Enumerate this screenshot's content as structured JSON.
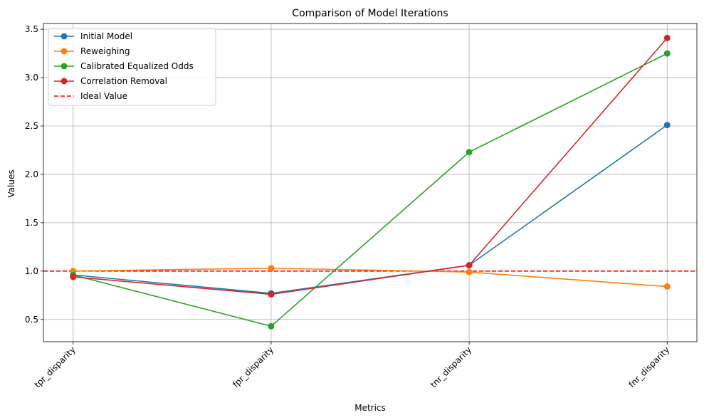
{
  "chart_data": {
    "type": "line",
    "title": "Comparison of Model Iterations",
    "xlabel": "Metrics",
    "ylabel": "Values",
    "categories": [
      "tpr_disparity",
      "fpr_disparity",
      "tnr_disparity",
      "fnr_disparity"
    ],
    "ylim": [
      0.27,
      3.56
    ],
    "yticks": [
      0.5,
      1.0,
      1.5,
      2.0,
      2.5,
      3.0,
      3.5
    ],
    "ytick_labels": [
      "0.5",
      "1.0",
      "1.5",
      "2.0",
      "2.5",
      "3.0",
      "3.5"
    ],
    "grid": true,
    "legend_position": "top-left",
    "series": [
      {
        "name": "Initial Model",
        "color": "#1f77b4",
        "values": [
          0.96,
          0.77,
          1.06,
          2.51
        ]
      },
      {
        "name": "Reweighing",
        "color": "#ff7f0e",
        "values": [
          1.0,
          1.03,
          0.99,
          0.84
        ]
      },
      {
        "name": "Calibrated Equalized Odds",
        "color": "#2ca02c",
        "values": [
          0.96,
          0.43,
          2.23,
          3.25
        ]
      },
      {
        "name": "Correlation Removal",
        "color": "#d62728",
        "values": [
          0.94,
          0.76,
          1.06,
          3.41
        ]
      }
    ],
    "reference_line": {
      "name": "Ideal Value",
      "value": 1.0,
      "color": "#ff0000",
      "style": "dashed"
    }
  }
}
